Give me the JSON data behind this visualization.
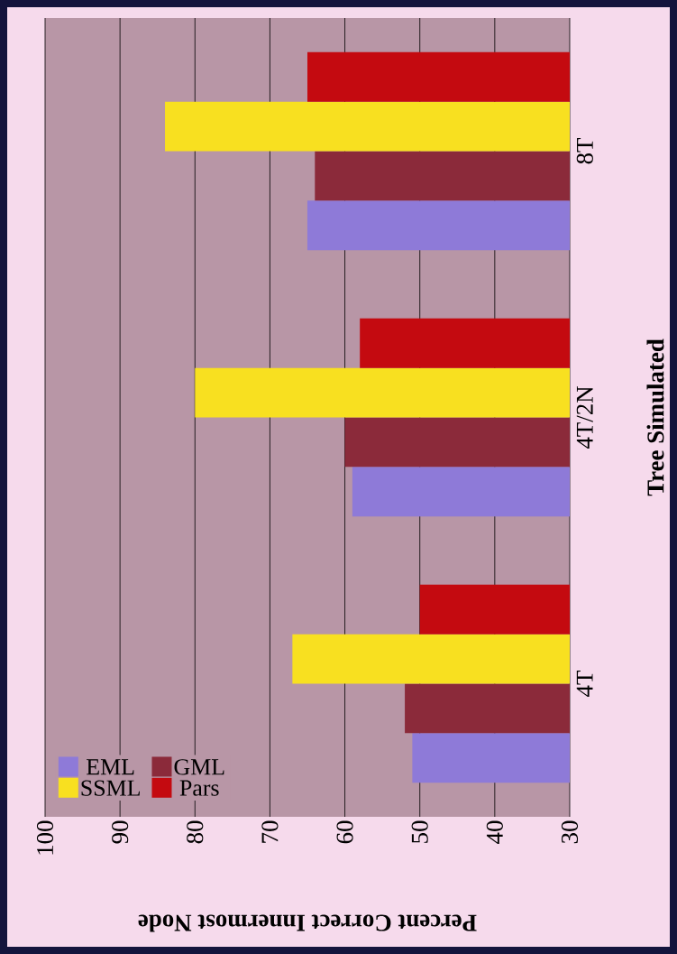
{
  "chart_data": {
    "type": "bar",
    "orientation": "horizontal",
    "xlabel": "Percent Correct Innermost Node",
    "ylabel": "Tree Simulated",
    "categories": [
      "8T",
      "4T/2N",
      "4T"
    ],
    "series": [
      {
        "name": "EML",
        "color": "#8e7ad8",
        "values": [
          65,
          59,
          51
        ]
      },
      {
        "name": "GML",
        "color": "#8b2a3a",
        "values": [
          64,
          60,
          52
        ]
      },
      {
        "name": "SSML",
        "color": "#f8e020",
        "values": [
          84,
          80,
          67
        ]
      },
      {
        "name": "Pars",
        "color": "#c40a10",
        "values": [
          65,
          58,
          50
        ]
      }
    ],
    "xlim": [
      100,
      30
    ],
    "xticks": [
      30,
      40,
      50,
      60,
      70,
      80,
      90,
      100
    ],
    "grid": "x",
    "legend": "bottom left"
  }
}
